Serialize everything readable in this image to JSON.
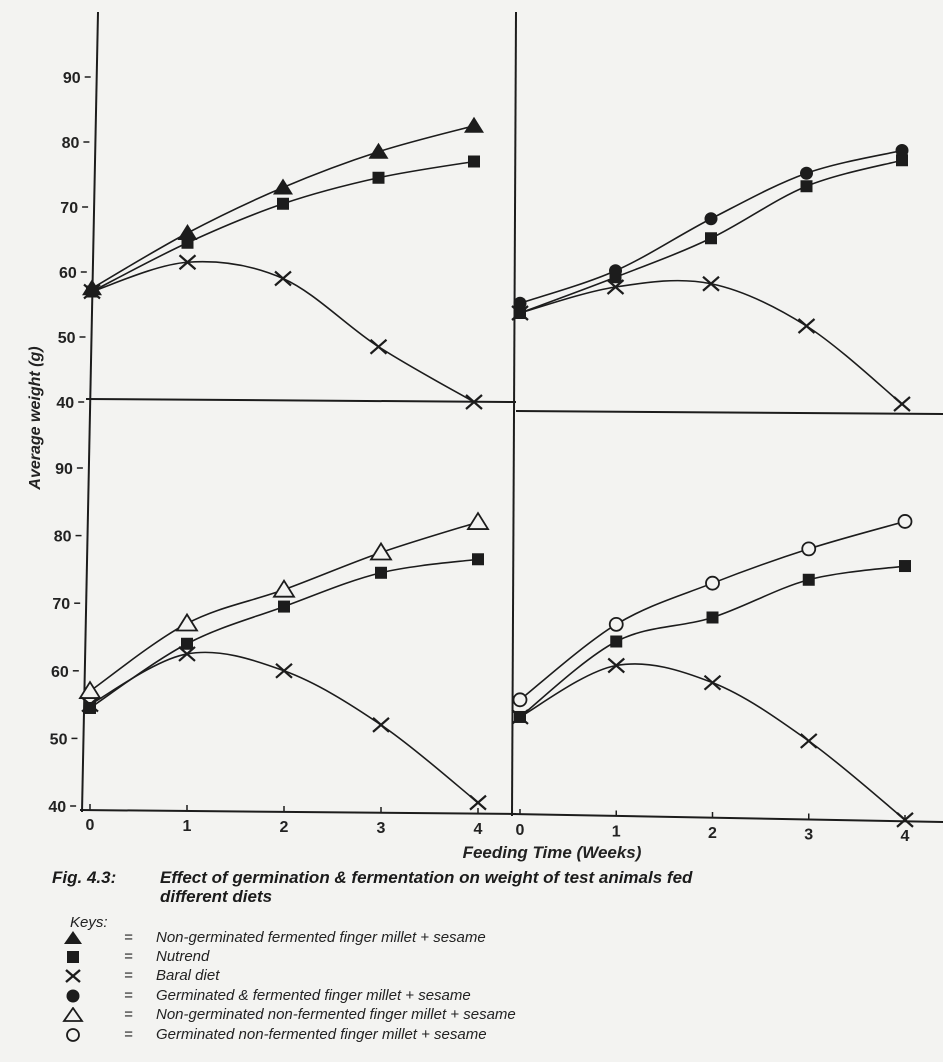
{
  "chart_data": [
    {
      "type": "line",
      "panel": "top-left",
      "x": [
        0,
        1,
        2,
        3,
        4
      ],
      "ylim": [
        40,
        90
      ],
      "series": [
        {
          "name": "Non-germinated fermented finger millet + sesame",
          "marker": "filled-triangle",
          "values": [
            57.5,
            66,
            73,
            78.5,
            82.5
          ]
        },
        {
          "name": "Nutrend",
          "marker": "filled-square",
          "values": [
            57,
            64.5,
            70.5,
            74.5,
            77
          ]
        },
        {
          "name": "Baral diet",
          "marker": "x",
          "values": [
            57,
            61.5,
            59,
            48.5,
            40
          ]
        }
      ]
    },
    {
      "type": "line",
      "panel": "top-right",
      "x": [
        0,
        1,
        2,
        3,
        4
      ],
      "ylim": [
        40,
        90
      ],
      "series": [
        {
          "name": "Germinated & fermented finger millet + sesame",
          "marker": "filled-circle",
          "values": [
            55.5,
            60.5,
            68.5,
            75.5,
            79
          ]
        },
        {
          "name": "Nutrend",
          "marker": "filled-square",
          "values": [
            54,
            59.5,
            65.5,
            73.5,
            77.5
          ]
        },
        {
          "name": "Baral diet",
          "marker": "x",
          "values": [
            54,
            58,
            58.5,
            52,
            40
          ]
        }
      ]
    },
    {
      "type": "line",
      "panel": "bottom-left",
      "x": [
        0,
        1,
        2,
        3,
        4
      ],
      "ylim": [
        40,
        90
      ],
      "series": [
        {
          "name": "Non-germinated non-fermented finger millet + sesame",
          "marker": "open-triangle",
          "values": [
            57,
            67,
            72,
            77.5,
            82
          ]
        },
        {
          "name": "Nutrend",
          "marker": "filled-square",
          "values": [
            54.5,
            64,
            69.5,
            74.5,
            76.5
          ]
        },
        {
          "name": "Baral diet",
          "marker": "x",
          "values": [
            55,
            62.5,
            60,
            52,
            40.5
          ]
        }
      ]
    },
    {
      "type": "line",
      "panel": "bottom-right",
      "x": [
        0,
        1,
        2,
        3,
        4
      ],
      "ylim": [
        40,
        90
      ],
      "series": [
        {
          "name": "Germinated non-fermented finger millet + sesame",
          "marker": "open-circle",
          "values": [
            56.5,
            67.5,
            73.5,
            78.5,
            82.5
          ]
        },
        {
          "name": "Nutrend",
          "marker": "filled-square",
          "values": [
            54,
            65,
            68.5,
            74,
            76
          ]
        },
        {
          "name": "Baral diet",
          "marker": "x",
          "values": [
            54,
            61.5,
            59,
            50.5,
            39
          ]
        }
      ]
    }
  ],
  "axes": {
    "ylabel": "Average weight (g)",
    "xlabel": "Feeding Time (Weeks)",
    "y_ticks": [
      "90",
      "80",
      "70",
      "60",
      "50",
      "40"
    ],
    "x_ticks": [
      "0",
      "1",
      "2",
      "3",
      "4"
    ]
  },
  "caption": {
    "number": "Fig. 4.3:",
    "line1": "Effect of germination & fermentation on weight of  test animals fed",
    "line2": "different diets"
  },
  "keys": {
    "title": "Keys:",
    "items": [
      {
        "symbol": "filled-triangle",
        "eq": "=",
        "label": "Non-germinated fermented finger millet + sesame"
      },
      {
        "symbol": "filled-square",
        "eq": "=",
        "label": "Nutrend"
      },
      {
        "symbol": "x",
        "eq": "=",
        "label": "Baral diet"
      },
      {
        "symbol": "filled-circle",
        "eq": "=",
        "label": "Germinated & fermented finger millet + sesame"
      },
      {
        "symbol": "open-triangle",
        "eq": "=",
        "label": "Non-germinated non-fermented finger millet + sesame"
      },
      {
        "symbol": "open-circle",
        "eq": "=",
        "label": "Germinated non-fermented finger millet + sesame"
      }
    ]
  }
}
